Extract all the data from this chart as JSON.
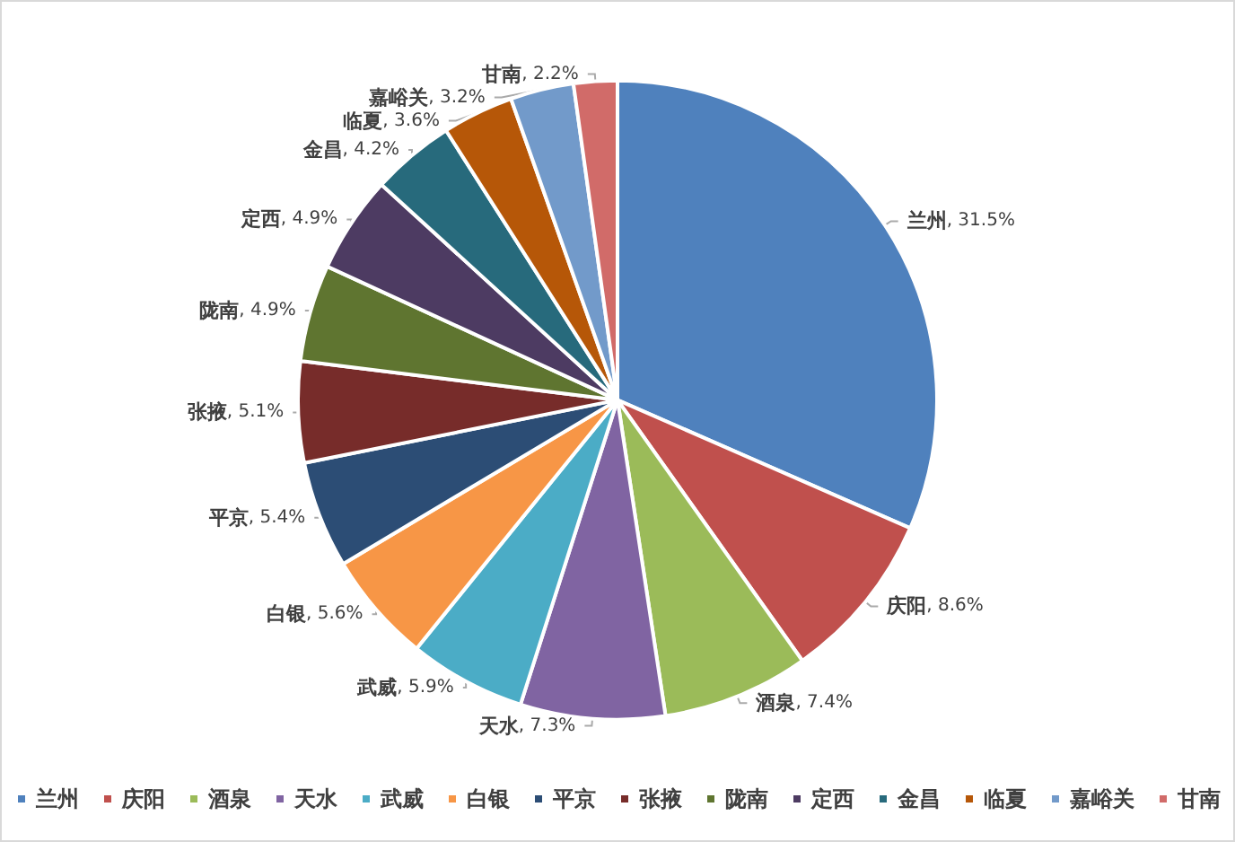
{
  "chart_data": {
    "type": "pie",
    "categories": [
      "兰州",
      "庆阳",
      "酒泉",
      "天水",
      "武威",
      "白银",
      "平京",
      "张掖",
      "陇南",
      "定西",
      "金昌",
      "临夏",
      "嘉峪关",
      "甘南"
    ],
    "values": [
      31.5,
      8.6,
      7.4,
      7.3,
      5.9,
      5.6,
      5.4,
      5.1,
      4.9,
      4.9,
      4.2,
      3.6,
      3.2,
      2.2
    ],
    "value_labels": [
      ", 31.5%",
      ", 8.6%",
      ", 7.4%",
      ", 7.3%",
      ", 5.9%",
      ", 5.6%",
      ", 5.4%",
      ", 5.1%",
      ", 4.9%",
      ", 4.9%",
      ", 4.2%",
      ", 3.6%",
      ", 3.2%",
      ", 2.2%"
    ],
    "colors": [
      "#4f81bd",
      "#c0504d",
      "#9bbb59",
      "#8064a2",
      "#4bacc6",
      "#f79646",
      "#2c4d75",
      "#772c2a",
      "#5f7530",
      "#4d3b62",
      "#276a7c",
      "#b65708",
      "#729aca",
      "#d16b69"
    ],
    "legend": "bottom"
  }
}
